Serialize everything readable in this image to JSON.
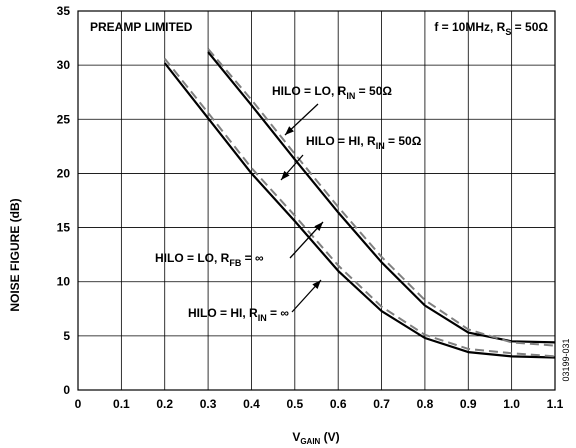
{
  "chart_data": {
    "type": "line",
    "xlabel": {
      "main": "V",
      "sub": "GAIN",
      "tail": " (V)"
    },
    "ylabel": "NOISE FIGURE (dB)",
    "xlim": [
      0,
      1.1
    ],
    "ylim": [
      0,
      35
    ],
    "x_ticks": [
      0,
      0.1,
      0.2,
      0.3,
      0.4,
      0.5,
      0.6,
      0.7,
      0.8,
      0.9,
      1.0,
      1.1
    ],
    "x_tick_labels": [
      "0",
      "0.1",
      "0.2",
      "0.3",
      "0.4",
      "0.5",
      "0.6",
      "0.7",
      "0.8",
      "0.9",
      "1.0",
      "1.1"
    ],
    "y_ticks": [
      0,
      5,
      10,
      15,
      20,
      25,
      30,
      35
    ],
    "y_tick_labels": [
      "0",
      "5",
      "10",
      "15",
      "20",
      "25",
      "30",
      "35"
    ],
    "grid": true,
    "series": [
      {
        "style": "solid",
        "color": "#000000",
        "x": [
          0.3,
          0.4,
          0.5,
          0.6,
          0.7,
          0.8,
          0.9,
          1.0,
          1.1
        ],
        "y": [
          31.2,
          26.3,
          21.3,
          16.4,
          11.8,
          7.8,
          5.3,
          4.5,
          4.4
        ]
      },
      {
        "style": "dashed",
        "color": "#808080",
        "x": [
          0.3,
          0.4,
          0.5,
          0.6,
          0.7,
          0.8,
          0.9,
          1.0,
          1.1
        ],
        "y": [
          31.5,
          26.8,
          21.8,
          16.9,
          12.3,
          8.3,
          5.6,
          4.4,
          4.1
        ]
      },
      {
        "style": "solid",
        "color": "#000000",
        "x": [
          0.2,
          0.3,
          0.4,
          0.5,
          0.6,
          0.7,
          0.8,
          0.9,
          1.0,
          1.1
        ],
        "y": [
          30.2,
          25.1,
          20.0,
          15.6,
          11.0,
          7.3,
          4.8,
          3.5,
          3.1,
          3.0
        ]
      },
      {
        "style": "dashed",
        "color": "#808080",
        "x": [
          0.2,
          0.3,
          0.4,
          0.5,
          0.6,
          0.7,
          0.8,
          0.9,
          1.0,
          1.1
        ],
        "y": [
          30.6,
          25.6,
          20.5,
          16.1,
          11.5,
          7.7,
          5.1,
          3.8,
          3.4,
          3.1
        ]
      }
    ],
    "annotations": [
      {
        "id": "preamp",
        "parts": [
          {
            "t": "PREAMP LIMITED"
          }
        ]
      },
      {
        "id": "cond",
        "parts": [
          {
            "t": "f = 10MHz, R"
          },
          {
            "t": "S",
            "sub": true
          },
          {
            "t": " = 50Ω"
          }
        ]
      },
      {
        "id": "lo50",
        "parts": [
          {
            "t": "HILO = LO, R"
          },
          {
            "t": "IN",
            "sub": true
          },
          {
            "t": " = 50Ω"
          }
        ]
      },
      {
        "id": "hi50",
        "parts": [
          {
            "t": "HILO = HI, R"
          },
          {
            "t": "IN",
            "sub": true
          },
          {
            "t": " = 50Ω"
          }
        ]
      },
      {
        "id": "loinf",
        "parts": [
          {
            "t": "HILO = LO, R"
          },
          {
            "t": "FB",
            "sub": true
          },
          {
            "t": " = ∞"
          }
        ]
      },
      {
        "id": "hiinf",
        "parts": [
          {
            "t": "HILO = HI, R"
          },
          {
            "t": "IN",
            "sub": true
          },
          {
            "t": " = ∞"
          }
        ]
      }
    ],
    "figure_id": "03199-031"
  }
}
